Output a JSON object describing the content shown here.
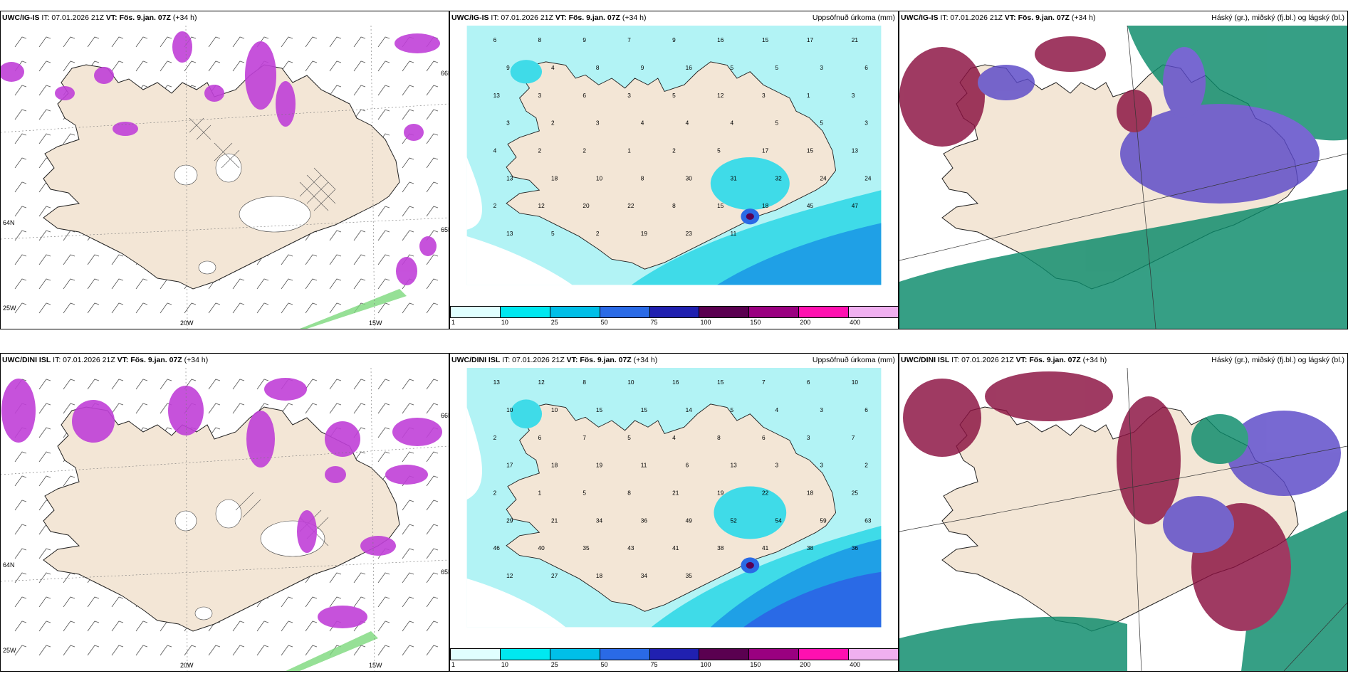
{
  "rows": [
    {
      "id": "ig",
      "p1": {
        "model": "UWC/IG-IS",
        "it": "IT: 07.01.2026 21Z",
        "vt_bold": "VT: Fös. 9.jan. 07Z",
        "lead": "(+34 h)"
      },
      "p2": {
        "model": "UWC/IG-IS",
        "it": "IT: 07.01.2026 21Z",
        "vt_bold": "VT: Fös. 9.jan. 07Z",
        "lead": "(+34 h)",
        "right_label": "Uppsöfnuð úrkoma (mm)"
      },
      "p3": {
        "model": "UWC/IG-IS",
        "it": "IT: 07.01.2026 21Z",
        "vt_bold": "VT: Fös. 9.jan. 07Z",
        "lead": "(+34 h)",
        "right_label": "Háský (gr.), miðský (fj.bl.) og lágský (bl.)"
      }
    },
    {
      "id": "dini",
      "p1": {
        "model": "UWC/DINI ISL",
        "it": "IT: 07.01.2026 21Z",
        "vt_bold": "VT: Fös. 9.jan. 07Z",
        "lead": "(+34 h)"
      },
      "p2": {
        "model": "UWC/DINI ISL",
        "it": "IT: 07.01.2026 21Z",
        "vt_bold": "VT: Fös. 9.jan. 07Z",
        "lead": "(+34 h)",
        "right_label": "Uppsöfnuð úrkoma (mm)"
      },
      "p3": {
        "model": "UWC/DINI ISL",
        "it": "IT: 07.01.2026 21Z",
        "vt_bold": "VT: Fös. 9.jan. 07Z",
        "lead": "(+34 h)",
        "right_label": "Háský (gr.), miðský (fj.bl.) og lágský (bl.)"
      }
    }
  ],
  "grid_labels": {
    "lon_20": "20W",
    "lon_15": "15W",
    "lon_25": "25W",
    "lat_66": "66N",
    "lat_64": "64N",
    "lat_65": "65N"
  },
  "colorbar": {
    "labels": [
      "1",
      "10",
      "25",
      "50",
      "75",
      "100",
      "150",
      "200",
      "400"
    ],
    "colors": [
      "#e0ffff",
      "#00e8f0",
      "#00bfe8",
      "#2a6ae6",
      "#2020b0",
      "#5a0050",
      "#9a0080",
      "#ff10b0",
      "#f0b0f0"
    ]
  },
  "colors": {
    "land": "#f3e6d6",
    "precip_low": "#b2f3f5",
    "precip_mid": "#3fdbe8",
    "precip_high": "#1fa0e6",
    "convective": "#c040d8",
    "high_cloud": "#0a8a6a",
    "mid_cloud": "#5a48c8",
    "low_cloud": "#8a1040"
  },
  "precip_values": {
    "ig": [
      "6",
      "8",
      "9",
      "7",
      "9",
      "16",
      "15",
      "17",
      "21",
      "9",
      "4",
      "8",
      "9",
      "16",
      "5",
      "5",
      "3",
      "6",
      "13",
      "3",
      "6",
      "3",
      "5",
      "12",
      "3",
      "1",
      "3",
      "3",
      "2",
      "3",
      "4",
      "4",
      "4",
      "5",
      "5",
      "3",
      "4",
      "2",
      "2",
      "1",
      "2",
      "5",
      "17",
      "15",
      "13",
      "13",
      "18",
      "10",
      "8",
      "30",
      "31",
      "32",
      "24",
      "24",
      "2",
      "12",
      "20",
      "22",
      "8",
      "15",
      "18",
      "45",
      "47",
      "13",
      "5",
      "2",
      "19",
      "23",
      "11"
    ],
    "dini": [
      "13",
      "12",
      "8",
      "10",
      "16",
      "15",
      "7",
      "6",
      "10",
      "10",
      "10",
      "15",
      "15",
      "14",
      "5",
      "4",
      "3",
      "6",
      "2",
      "6",
      "7",
      "5",
      "4",
      "8",
      "6",
      "3",
      "7",
      "17",
      "18",
      "19",
      "11",
      "6",
      "13",
      "3",
      "3",
      "2",
      "2",
      "1",
      "5",
      "8",
      "21",
      "19",
      "22",
      "18",
      "25",
      "29",
      "21",
      "34",
      "36",
      "49",
      "52",
      "54",
      "59",
      "63",
      "46",
      "40",
      "35",
      "43",
      "41",
      "38",
      "41",
      "38",
      "36",
      "12",
      "27",
      "18",
      "34",
      "35"
    ]
  }
}
